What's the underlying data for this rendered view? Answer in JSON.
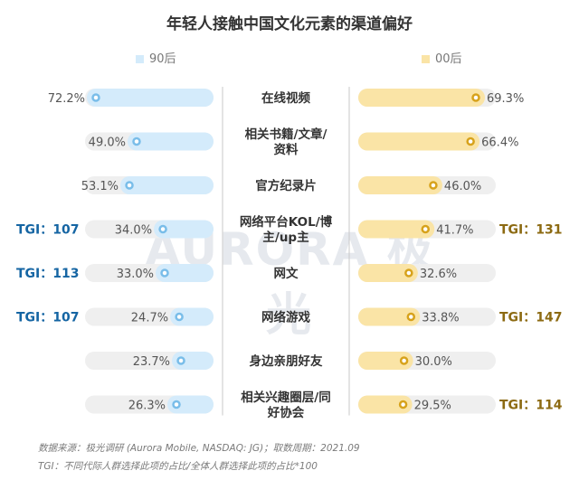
{
  "chart_data": {
    "type": "bar",
    "title": "年轻人接触中国文化元素的渠道偏好",
    "categories": [
      "在线视频",
      "相关书籍/文章/资料",
      "官方纪录片",
      "网络平台KOL/博主/up主",
      "网文",
      "网络游戏",
      "身边亲朋好友",
      "相关兴趣圈层/同好协会"
    ],
    "category_lines": [
      [
        "在线视频"
      ],
      [
        "相关书籍/文章/",
        "资料"
      ],
      [
        "官方纪录片"
      ],
      [
        "网络平台KOL/博",
        "主/up主"
      ],
      [
        "网文"
      ],
      [
        "网络游戏"
      ],
      [
        "身边亲朋好友"
      ],
      [
        "相关兴趣圈层/同",
        "好协会"
      ]
    ],
    "series": [
      {
        "name": "90后",
        "values": [
          72.2,
          49.0,
          53.1,
          34.0,
          33.0,
          24.7,
          23.7,
          26.3
        ],
        "labels": [
          "72.2%",
          "49.0%",
          "53.1%",
          "34.0%",
          "33.0%",
          "24.7%",
          "23.7%",
          "26.3%"
        ],
        "tgi": [
          "",
          "",
          "",
          "TGI：107",
          "TGI：113",
          "TGI：107",
          "",
          ""
        ]
      },
      {
        "name": "00后",
        "values": [
          69.3,
          66.4,
          46.0,
          41.7,
          32.6,
          33.8,
          30.0,
          29.5
        ],
        "labels": [
          "69.3%",
          "66.4%",
          "46.0%",
          "41.7%",
          "32.6%",
          "33.8%",
          "30.0%",
          "29.5%"
        ],
        "tgi": [
          "",
          "",
          "",
          "TGI：131",
          "",
          "TGI：147",
          "",
          "TGI：114"
        ]
      }
    ],
    "xlim": [
      0,
      100
    ],
    "colors": {
      "s90_fill": "#d4ebfb",
      "s90_marker": "#79bde9",
      "s90_tgi": "#1565a3",
      "s00_fill": "#fae4a6",
      "s00_marker": "#d7a21b",
      "s00_tgi": "#8c6a12",
      "track": "#efefef",
      "divider": "#c8c8c8"
    }
  },
  "watermark": "AURORA 极光",
  "footer": {
    "source": "数据来源：极光调研 (Aurora Mobile, NASDAQ: JG)；取数周期：2021.09",
    "note": "TGI：不同代际人群选择此项的占比/全体人群选择此项的占比*100"
  }
}
